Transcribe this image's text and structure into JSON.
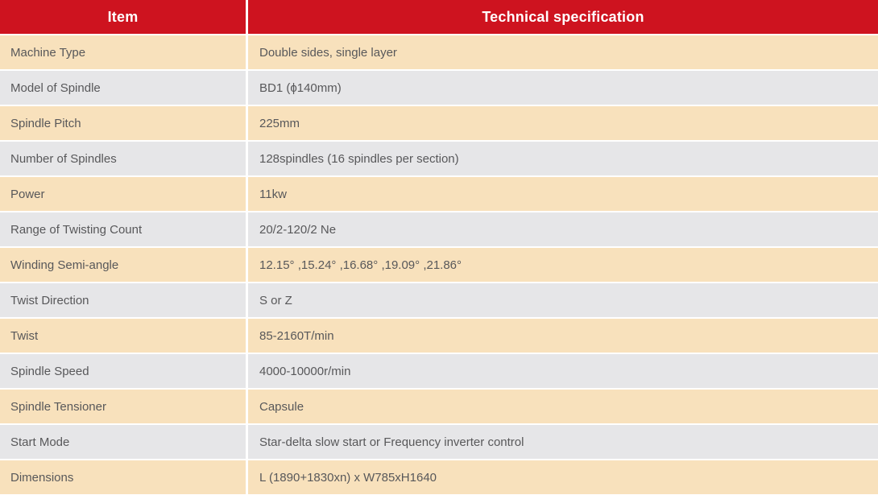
{
  "table": {
    "header": {
      "item_label": "Item",
      "spec_label": "Technical specification"
    },
    "rows": [
      {
        "item": "Machine Type",
        "spec": "Double sides, single layer"
      },
      {
        "item": "Model of Spindle",
        "spec": "BD1 (ϕ140mm)"
      },
      {
        "item": "Spindle Pitch",
        "spec": "225mm"
      },
      {
        "item": "Number of Spindles",
        "spec": "128spindles (16 spindles per section)"
      },
      {
        "item": "Power",
        "spec": "11kw"
      },
      {
        "item": "Range of Twisting Count",
        "spec": "20/2-120/2 Ne"
      },
      {
        "item": "Winding Semi-angle",
        "spec": "12.15° ,15.24° ,16.68° ,19.09° ,21.86°"
      },
      {
        "item": "Twist Direction",
        "spec": "S or Z"
      },
      {
        "item": "Twist",
        "spec": "85-2160T/min"
      },
      {
        "item": "Spindle Speed",
        "spec": "4000-10000r/min"
      },
      {
        "item": "Spindle Tensioner",
        "spec": "Capsule"
      },
      {
        "item": "Start Mode",
        "spec": "Star-delta slow start or Frequency inverter control"
      },
      {
        "item": "Dimensions",
        "spec": "L (1890+1830xn) x W785xH1640"
      }
    ]
  },
  "colors": {
    "header_bg": "#CE131F",
    "header_text": "#FFFFFF",
    "row_cream": "#F8E1BC",
    "row_gray": "#E6E6E8",
    "body_text": "#58585A",
    "divider": "#FFFFFF"
  }
}
